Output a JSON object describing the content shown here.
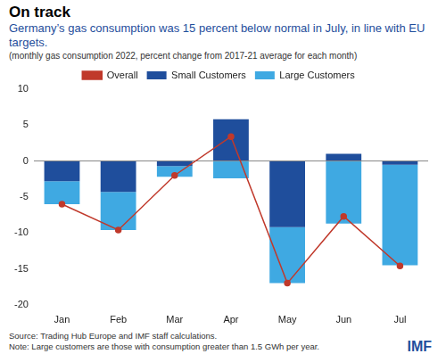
{
  "chart_data": {
    "type": "bar",
    "title": "On track",
    "subtitle": "Germany’s gas consumption was 15 percent below normal in July, in line with EU targets.",
    "annotations": [
      "(monthly gas consumption 2022, percent change from 2017-21 average for each month)"
    ],
    "categories": [
      "Jan",
      "Feb",
      "Mar",
      "Apr",
      "May",
      "Jun",
      "Jul"
    ],
    "series": [
      {
        "name": "Small Customers",
        "type": "bar",
        "color": "#1f4e9c",
        "values": [
          -2.8,
          -4.3,
          -0.7,
          5.8,
          -9.2,
          1.0,
          -0.5
        ]
      },
      {
        "name": "Large Customers",
        "type": "bar",
        "color": "#3fa9e2",
        "values": [
          -3.2,
          -5.3,
          -1.5,
          -2.4,
          -7.8,
          -8.7,
          -14.0
        ]
      },
      {
        "name": "Overall",
        "type": "line",
        "color": "#c0392b",
        "marker": "circle",
        "line_style": "solid",
        "values": [
          -6.0,
          -9.6,
          -2.0,
          3.4,
          -17.0,
          -7.7,
          -14.6
        ]
      }
    ],
    "stacked": true,
    "ylim": [
      -20,
      10
    ],
    "yticks": [
      -20,
      -15,
      -10,
      -5,
      0,
      5,
      10
    ],
    "grid": false,
    "legend": "top",
    "data_labels": false
  },
  "footer": {
    "source": "Source: Trading Hub Europe and IMF staff calculations.",
    "note": "Note: Large customers are those with consumption greater than 1.5 GWh per year.",
    "logo": "IMF"
  }
}
